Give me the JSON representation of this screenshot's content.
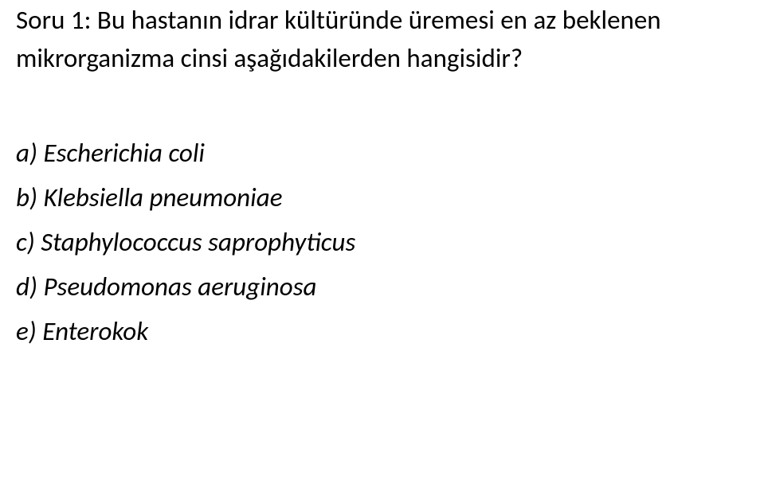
{
  "document": {
    "background_color": "#ffffff",
    "text_color": "#000000",
    "question": {
      "label": "Soru 1:",
      "label_fontweight": 400,
      "text": " Bu hastanın idrar kültüründe üremesi en az beklenen mikrorganizma cinsi  aşağıdakilerden hangisidir?",
      "fontsize": 33
    },
    "options": [
      {
        "letter": "a)",
        "text": "Escherichia coli"
      },
      {
        "letter": "b)",
        "text": "Klebsiella pneumoniae"
      },
      {
        "letter": "c)",
        "text": "Staphylococcus saprophyticus"
      },
      {
        "letter": "d)",
        "text": "Pseudomonas aeruginosa"
      },
      {
        "letter": "e)",
        "text": "Enterokok"
      }
    ],
    "option_fontsize": 33,
    "option_style": "italic"
  }
}
